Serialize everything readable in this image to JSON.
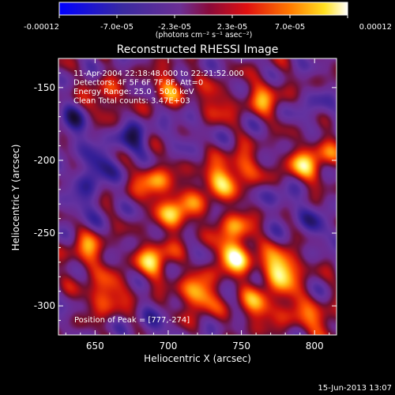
{
  "chart_data": {
    "type": "heatmap",
    "title": "Reconstructed RHESSI Image",
    "xlabel": "Heliocentric X (arcsec)",
    "ylabel": "Heliocentric Y (arcsec)",
    "xlim": [
      625,
      815
    ],
    "ylim": [
      -320,
      -130
    ],
    "xticks": [
      650,
      700,
      750,
      800
    ],
    "yticks": [
      -150,
      -200,
      -250,
      -300
    ],
    "colorbar": {
      "range": [
        -0.00012,
        0.00012
      ],
      "tick_labels": [
        "-0.00012",
        "-7.0e-05",
        "-2.3e-05",
        "2.3e-05",
        "7.0e-05",
        "0.00012"
      ],
      "unit_label": "(photons cm⁻² s⁻¹ asec⁻²)",
      "colormap": "rhessi blue-purple-red-yellow-white"
    },
    "annotations": [
      "11-Apr-2004 22:18:48.000 to 22:21:52.000",
      "Detectors: 4F 5F 6F 7F 8F, Att=0",
      "Energy Range: 25.0 - 50.0 keV",
      "Clean     Total counts: 3.47E+03"
    ],
    "peak_label": "Position of Peak = [777,-274]",
    "peak": {
      "x": 777,
      "y": -274
    },
    "timestamp": "15-Jun-2013 13:07",
    "sources": [
      {
        "x": 777,
        "y": -274,
        "a": 1.0
      },
      {
        "x": 745,
        "y": -266,
        "a": 0.9
      },
      {
        "x": 690,
        "y": -268,
        "a": 0.75
      },
      {
        "x": 720,
        "y": -292,
        "a": 0.8
      },
      {
        "x": 657,
        "y": -292,
        "a": 0.65
      },
      {
        "x": 645,
        "y": -262,
        "a": 0.55
      },
      {
        "x": 706,
        "y": -235,
        "a": 0.8
      },
      {
        "x": 690,
        "y": -215,
        "a": 0.65
      },
      {
        "x": 732,
        "y": -215,
        "a": 0.7
      },
      {
        "x": 750,
        "y": -205,
        "a": 0.55
      },
      {
        "x": 790,
        "y": -205,
        "a": 0.6
      },
      {
        "x": 805,
        "y": -195,
        "a": 0.45
      },
      {
        "x": 765,
        "y": -157,
        "a": 0.55
      },
      {
        "x": 730,
        "y": -162,
        "a": 0.45
      },
      {
        "x": 700,
        "y": -150,
        "a": 0.5
      },
      {
        "x": 657,
        "y": -157,
        "a": 0.45
      },
      {
        "x": 760,
        "y": -300,
        "a": 0.6
      },
      {
        "x": 785,
        "y": -300,
        "a": 0.45
      },
      {
        "x": 805,
        "y": -312,
        "a": 0.45
      },
      {
        "x": 745,
        "y": -245,
        "a": 0.55
      }
    ],
    "sinks": [
      {
        "x": 650,
        "y": -205,
        "a": 0.9
      },
      {
        "x": 635,
        "y": -175,
        "a": 0.7
      },
      {
        "x": 675,
        "y": -185,
        "a": 0.8
      },
      {
        "x": 640,
        "y": -230,
        "a": 0.5
      },
      {
        "x": 780,
        "y": -225,
        "a": 0.5
      },
      {
        "x": 800,
        "y": -245,
        "a": 0.55
      },
      {
        "x": 690,
        "y": -315,
        "a": 0.45
      },
      {
        "x": 800,
        "y": -165,
        "a": 0.4
      },
      {
        "x": 715,
        "y": -175,
        "a": 0.4
      }
    ]
  }
}
